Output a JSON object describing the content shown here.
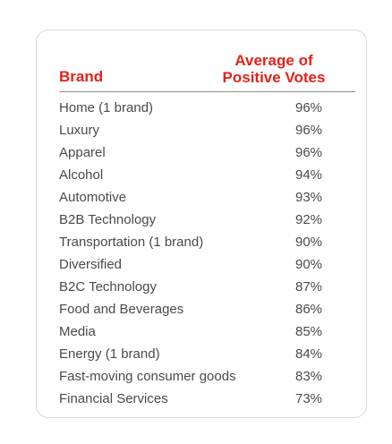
{
  "table": {
    "header": {
      "brand": "Brand",
      "votes_line1": "Average of",
      "votes_line2": "Positive Votes"
    },
    "rows": [
      {
        "brand": "Home (1 brand)",
        "value": "96%"
      },
      {
        "brand": "Luxury",
        "value": "96%"
      },
      {
        "brand": "Apparel",
        "value": "96%"
      },
      {
        "brand": "Alcohol",
        "value": "94%"
      },
      {
        "brand": "Automotive",
        "value": "93%"
      },
      {
        "brand": "B2B Technology",
        "value": "92%"
      },
      {
        "brand": "Transportation (1 brand)",
        "value": "90%"
      },
      {
        "brand": "Diversified",
        "value": "90%"
      },
      {
        "brand": "B2C Technology",
        "value": "87%"
      },
      {
        "brand": "Food and Beverages",
        "value": "86%"
      },
      {
        "brand": "Media",
        "value": "85%"
      },
      {
        "brand": "Energy (1 brand)",
        "value": "84%"
      },
      {
        "brand": "Fast-moving consumer goods",
        "value": "83%"
      },
      {
        "brand": "Financial Services",
        "value": "73%"
      }
    ]
  },
  "colors": {
    "header_text": "#e2231a",
    "body_text": "#4a4a4a",
    "rule": "#8c8c8c",
    "card_border": "#d9d9d9"
  }
}
